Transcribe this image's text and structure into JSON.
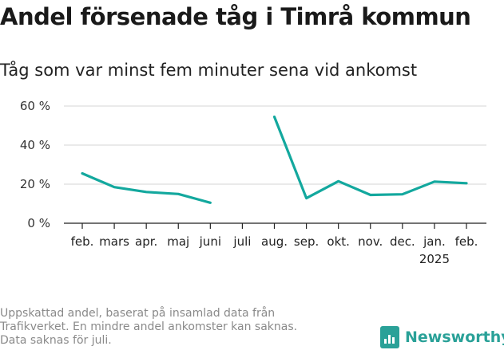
{
  "header": {
    "title": "Andel försenade tåg i Timrå kommun",
    "subtitle": "Tåg som var minst fem minuter sena vid ankomst"
  },
  "footnote": [
    "Uppskattad andel, baserat på insamlad data från",
    "Trafikverket. En mindre andel ankomster kan saknas.",
    "Data saknas för juli."
  ],
  "brand": {
    "name": "Newsworthy",
    "color": "#2aa198",
    "icon": "bar-chart-icon"
  },
  "chart_data": {
    "type": "line",
    "categories": [
      "feb.",
      "mars",
      "apr.",
      "maj",
      "juni",
      "juli",
      "aug.",
      "sep.",
      "okt.",
      "nov.",
      "dec.",
      "jan.",
      "feb."
    ],
    "year_label": {
      "under_category_index": 11,
      "text": "2025"
    },
    "series": [
      {
        "values": [
          25.5,
          18.5,
          16,
          15,
          10.5,
          null,
          54.5,
          12.8,
          21.5,
          14.5,
          14.8,
          21.3,
          20.5
        ],
        "color": "#13a89e"
      }
    ],
    "yticks": [
      0,
      20,
      40,
      60
    ],
    "ytick_labels": [
      "0 %",
      "20 %",
      "40 %",
      "60 %"
    ],
    "ylim": [
      0,
      60
    ],
    "grid": true,
    "title": "",
    "xlabel": "",
    "ylabel": ""
  }
}
